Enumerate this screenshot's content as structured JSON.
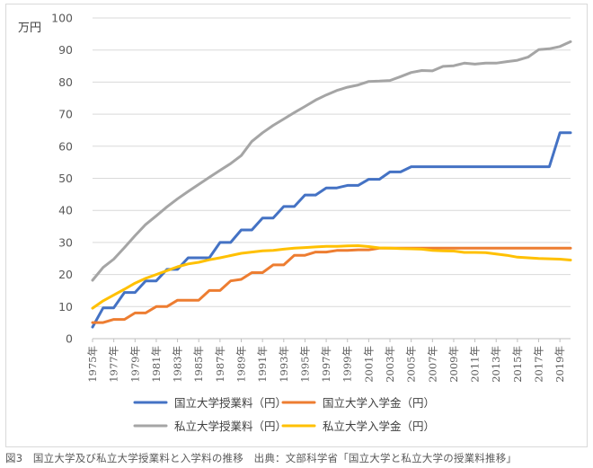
{
  "caption": "図3　国立大学及び私立大学授業料と入学料の推移　出典：文部科学省「国立大学と私立大学の授業料推移」",
  "chart_data": {
    "type": "line",
    "ylabel": "万円",
    "ylim": [
      0,
      100
    ],
    "yticks": [
      "0",
      "10",
      "20",
      "30",
      "40",
      "50",
      "60",
      "70",
      "80",
      "90",
      "100"
    ],
    "grid": true,
    "legend_position": "bottom",
    "x": [
      1975,
      1976,
      1977,
      1978,
      1979,
      1980,
      1981,
      1982,
      1983,
      1984,
      1985,
      1986,
      1987,
      1988,
      1989,
      1990,
      1991,
      1992,
      1993,
      1994,
      1995,
      1996,
      1997,
      1998,
      1999,
      2000,
      2001,
      2002,
      2003,
      2004,
      2005,
      2006,
      2007,
      2008,
      2009,
      2010,
      2011,
      2012,
      2013,
      2014,
      2015,
      2016,
      2017,
      2018,
      2019,
      2020
    ],
    "x_tick_labels": [
      "1975年",
      "1977年",
      "1979年",
      "1981年",
      "1983年",
      "1985年",
      "1987年",
      "1989年",
      "1991年",
      "1993年",
      "1995年",
      "1997年",
      "1999年",
      "2001年",
      "2003年",
      "2005年",
      "2007年",
      "2009年",
      "2011年",
      "2013年",
      "2015年",
      "2017年",
      "2019年"
    ],
    "series": [
      {
        "name": "国立大学授業料（円）",
        "color": "#4472C4",
        "values": [
          3.6,
          9.6,
          9.6,
          14.4,
          14.4,
          18,
          18,
          21.6,
          21.6,
          25.2,
          25.2,
          25.2,
          30,
          30,
          33.9,
          33.9,
          37.6,
          37.6,
          41.2,
          41.2,
          44.8,
          44.8,
          47,
          47,
          47.8,
          47.8,
          49.7,
          49.7,
          52,
          52,
          53.6,
          53.6,
          53.6,
          53.6,
          53.6,
          53.6,
          53.6,
          53.6,
          53.6,
          53.6,
          53.6,
          53.6,
          53.6,
          53.6,
          64.2,
          64.2
        ]
      },
      {
        "name": "国立大学入学金（円）",
        "color": "#ED7D31",
        "values": [
          5,
          5,
          6,
          6,
          8,
          8,
          10,
          10,
          12,
          12,
          12,
          15,
          15,
          18,
          18.5,
          20.6,
          20.6,
          23,
          23,
          26,
          26,
          27,
          27,
          27.5,
          27.5,
          27.7,
          27.7,
          28.2,
          28.2,
          28.2,
          28.2,
          28.2,
          28.2,
          28.2,
          28.2,
          28.2,
          28.2,
          28.2,
          28.2,
          28.2,
          28.2,
          28.2,
          28.2,
          28.2,
          28.2,
          28.2
        ]
      },
      {
        "name": "私立大学授業料（円）",
        "color": "#A5A5A5",
        "values": [
          18.2,
          22.2,
          24.8,
          28.4,
          32.1,
          35.6,
          38.3,
          41.1,
          43.6,
          45.9,
          48.1,
          50.3,
          52.5,
          54.6,
          57.1,
          61.5,
          64.2,
          66.5,
          68.5,
          70.5,
          72.4,
          74.4,
          76,
          77.4,
          78.4,
          79.1,
          80.2,
          80.3,
          80.5,
          81.7,
          83,
          83.6,
          83.5,
          84.9,
          85.1,
          85.9,
          85.6,
          85.9,
          85.9,
          86.4,
          86.8,
          87.8,
          90.1,
          90.4,
          91.1,
          92.6
        ]
      },
      {
        "name": "私立大学入学金（円）",
        "color": "#FFC000",
        "values": [
          9.5,
          11.8,
          13.6,
          15.4,
          17.3,
          18.8,
          20,
          21.2,
          22.4,
          23.3,
          23.8,
          24.6,
          25.2,
          25.9,
          26.6,
          27,
          27.4,
          27.5,
          27.9,
          28.2,
          28.4,
          28.6,
          28.8,
          28.8,
          28.9,
          29,
          28.7,
          28.3,
          28.2,
          28.1,
          28.0,
          27.9,
          27.5,
          27.4,
          27.3,
          26.9,
          26.9,
          26.8,
          26.4,
          26.0,
          25.4,
          25.2,
          25.0,
          24.9,
          24.8,
          24.5
        ]
      }
    ]
  }
}
